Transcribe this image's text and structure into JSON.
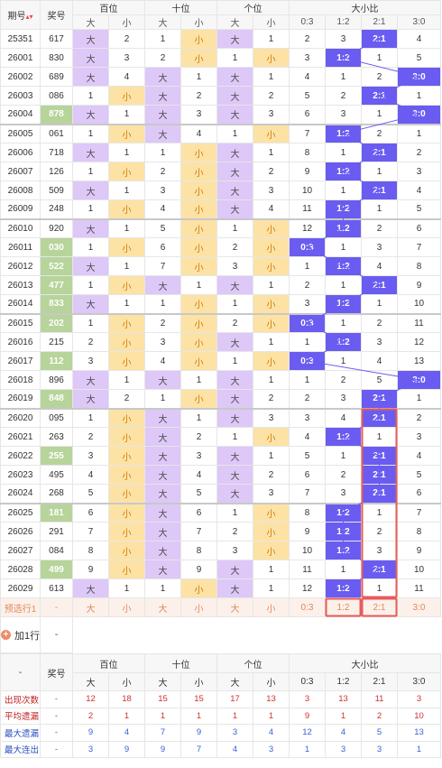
{
  "header": {
    "period_label": "期号",
    "prize_label": "奖号",
    "groups": [
      "百位",
      "十位",
      "个位",
      "大小比"
    ],
    "sub": [
      "大",
      "小",
      "大",
      "小",
      "大",
      "小",
      "0:3",
      "1:2",
      "2:1",
      "3:0"
    ]
  },
  "rows": [
    {
      "p": "25351",
      "n": "617",
      "j": false,
      "c": [
        {
          "t": "大",
          "k": "da"
        },
        {
          "t": "2"
        },
        {
          "t": "1"
        },
        {
          "t": "小",
          "k": "xiao"
        },
        {
          "t": "大",
          "k": "da"
        },
        {
          "t": "1"
        },
        {
          "t": "2"
        },
        {
          "t": "3"
        },
        {
          "t": "2:1",
          "k": "ratio"
        },
        {
          "t": "4"
        }
      ]
    },
    {
      "p": "26001",
      "n": "830",
      "j": false,
      "c": [
        {
          "t": "大",
          "k": "da"
        },
        {
          "t": "3"
        },
        {
          "t": "2"
        },
        {
          "t": "小",
          "k": "xiao"
        },
        {
          "t": "1"
        },
        {
          "t": "小",
          "k": "xiao"
        },
        {
          "t": "3"
        },
        {
          "t": "1:2",
          "k": "ratio"
        },
        {
          "t": "1"
        },
        {
          "t": "5"
        }
      ]
    },
    {
      "p": "26002",
      "n": "689",
      "j": false,
      "c": [
        {
          "t": "大",
          "k": "da"
        },
        {
          "t": "4"
        },
        {
          "t": "大",
          "k": "da"
        },
        {
          "t": "1"
        },
        {
          "t": "大",
          "k": "da"
        },
        {
          "t": "1"
        },
        {
          "t": "4"
        },
        {
          "t": "1"
        },
        {
          "t": "2"
        },
        {
          "t": "3:0",
          "k": "ratio"
        }
      ]
    },
    {
      "p": "26003",
      "n": "086",
      "j": false,
      "c": [
        {
          "t": "1"
        },
        {
          "t": "小",
          "k": "xiao"
        },
        {
          "t": "大",
          "k": "da"
        },
        {
          "t": "2"
        },
        {
          "t": "大",
          "k": "da"
        },
        {
          "t": "2"
        },
        {
          "t": "5"
        },
        {
          "t": "2"
        },
        {
          "t": "2:1",
          "k": "ratio"
        },
        {
          "t": "1"
        }
      ]
    },
    {
      "p": "26004",
      "n": "878",
      "j": true,
      "c": [
        {
          "t": "大",
          "k": "da"
        },
        {
          "t": "1"
        },
        {
          "t": "大",
          "k": "da"
        },
        {
          "t": "3"
        },
        {
          "t": "大",
          "k": "da"
        },
        {
          "t": "3"
        },
        {
          "t": "6"
        },
        {
          "t": "3"
        },
        {
          "t": "1"
        },
        {
          "t": "3:0",
          "k": "ratio"
        }
      ]
    },
    {
      "p": "26005",
      "n": "061",
      "j": false,
      "g": true,
      "c": [
        {
          "t": "1"
        },
        {
          "t": "小",
          "k": "xiao"
        },
        {
          "t": "大",
          "k": "da"
        },
        {
          "t": "4"
        },
        {
          "t": "1"
        },
        {
          "t": "小",
          "k": "xiao"
        },
        {
          "t": "7"
        },
        {
          "t": "1:2",
          "k": "ratio"
        },
        {
          "t": "2"
        },
        {
          "t": "1"
        }
      ]
    },
    {
      "p": "26006",
      "n": "718",
      "j": false,
      "c": [
        {
          "t": "大",
          "k": "da"
        },
        {
          "t": "1"
        },
        {
          "t": "1"
        },
        {
          "t": "小",
          "k": "xiao"
        },
        {
          "t": "大",
          "k": "da"
        },
        {
          "t": "1"
        },
        {
          "t": "8"
        },
        {
          "t": "1"
        },
        {
          "t": "2:1",
          "k": "ratio"
        },
        {
          "t": "2"
        }
      ]
    },
    {
      "p": "26007",
      "n": "126",
      "j": false,
      "c": [
        {
          "t": "1"
        },
        {
          "t": "小",
          "k": "xiao"
        },
        {
          "t": "2"
        },
        {
          "t": "小",
          "k": "xiao"
        },
        {
          "t": "大",
          "k": "da"
        },
        {
          "t": "2"
        },
        {
          "t": "9"
        },
        {
          "t": "1:2",
          "k": "ratio"
        },
        {
          "t": "1"
        },
        {
          "t": "3"
        }
      ]
    },
    {
      "p": "26008",
      "n": "509",
      "j": false,
      "c": [
        {
          "t": "大",
          "k": "da"
        },
        {
          "t": "1"
        },
        {
          "t": "3"
        },
        {
          "t": "小",
          "k": "xiao"
        },
        {
          "t": "大",
          "k": "da"
        },
        {
          "t": "3"
        },
        {
          "t": "10"
        },
        {
          "t": "1"
        },
        {
          "t": "2:1",
          "k": "ratio"
        },
        {
          "t": "4"
        }
      ]
    },
    {
      "p": "26009",
      "n": "248",
      "j": false,
      "c": [
        {
          "t": "1"
        },
        {
          "t": "小",
          "k": "xiao"
        },
        {
          "t": "4"
        },
        {
          "t": "小",
          "k": "xiao"
        },
        {
          "t": "大",
          "k": "da"
        },
        {
          "t": "4"
        },
        {
          "t": "11"
        },
        {
          "t": "1:2",
          "k": "ratio"
        },
        {
          "t": "1"
        },
        {
          "t": "5"
        }
      ]
    },
    {
      "p": "26010",
      "n": "920",
      "j": false,
      "g": true,
      "c": [
        {
          "t": "大",
          "k": "da"
        },
        {
          "t": "1"
        },
        {
          "t": "5"
        },
        {
          "t": "小",
          "k": "xiao"
        },
        {
          "t": "1"
        },
        {
          "t": "小",
          "k": "xiao"
        },
        {
          "t": "12"
        },
        {
          "t": "1:2",
          "k": "ratio"
        },
        {
          "t": "2"
        },
        {
          "t": "6"
        }
      ]
    },
    {
      "p": "26011",
      "n": "030",
      "j": true,
      "c": [
        {
          "t": "1"
        },
        {
          "t": "小",
          "k": "xiao"
        },
        {
          "t": "6"
        },
        {
          "t": "小",
          "k": "xiao"
        },
        {
          "t": "2"
        },
        {
          "t": "小",
          "k": "xiao"
        },
        {
          "t": "0:3",
          "k": "ratio"
        },
        {
          "t": "1"
        },
        {
          "t": "3"
        },
        {
          "t": "7"
        }
      ]
    },
    {
      "p": "26012",
      "n": "522",
      "j": true,
      "c": [
        {
          "t": "大",
          "k": "da"
        },
        {
          "t": "1"
        },
        {
          "t": "7"
        },
        {
          "t": "小",
          "k": "xiao"
        },
        {
          "t": "3"
        },
        {
          "t": "小",
          "k": "xiao"
        },
        {
          "t": "1"
        },
        {
          "t": "1:2",
          "k": "ratio"
        },
        {
          "t": "4"
        },
        {
          "t": "8"
        }
      ]
    },
    {
      "p": "26013",
      "n": "477",
      "j": true,
      "c": [
        {
          "t": "1"
        },
        {
          "t": "小",
          "k": "xiao"
        },
        {
          "t": "大",
          "k": "da"
        },
        {
          "t": "1"
        },
        {
          "t": "大",
          "k": "da"
        },
        {
          "t": "1"
        },
        {
          "t": "2"
        },
        {
          "t": "1"
        },
        {
          "t": "2:1",
          "k": "ratio"
        },
        {
          "t": "9"
        }
      ]
    },
    {
      "p": "26014",
      "n": "833",
      "j": true,
      "c": [
        {
          "t": "大",
          "k": "da"
        },
        {
          "t": "1"
        },
        {
          "t": "1"
        },
        {
          "t": "小",
          "k": "xiao"
        },
        {
          "t": "1"
        },
        {
          "t": "小",
          "k": "xiao"
        },
        {
          "t": "3"
        },
        {
          "t": "1:2",
          "k": "ratio"
        },
        {
          "t": "1"
        },
        {
          "t": "10"
        }
      ]
    },
    {
      "p": "26015",
      "n": "202",
      "j": true,
      "g": true,
      "c": [
        {
          "t": "1"
        },
        {
          "t": "小",
          "k": "xiao"
        },
        {
          "t": "2"
        },
        {
          "t": "小",
          "k": "xiao"
        },
        {
          "t": "2"
        },
        {
          "t": "小",
          "k": "xiao"
        },
        {
          "t": "0:3",
          "k": "ratio"
        },
        {
          "t": "1"
        },
        {
          "t": "2"
        },
        {
          "t": "11"
        }
      ]
    },
    {
      "p": "26016",
      "n": "215",
      "j": false,
      "c": [
        {
          "t": "2"
        },
        {
          "t": "小",
          "k": "xiao"
        },
        {
          "t": "3"
        },
        {
          "t": "小",
          "k": "xiao"
        },
        {
          "t": "大",
          "k": "da"
        },
        {
          "t": "1"
        },
        {
          "t": "1"
        },
        {
          "t": "1:2",
          "k": "ratio"
        },
        {
          "t": "3"
        },
        {
          "t": "12"
        }
      ]
    },
    {
      "p": "26017",
      "n": "112",
      "j": true,
      "c": [
        {
          "t": "3"
        },
        {
          "t": "小",
          "k": "xiao"
        },
        {
          "t": "4"
        },
        {
          "t": "小",
          "k": "xiao"
        },
        {
          "t": "1"
        },
        {
          "t": "小",
          "k": "xiao"
        },
        {
          "t": "0:3",
          "k": "ratio"
        },
        {
          "t": "1"
        },
        {
          "t": "4"
        },
        {
          "t": "13"
        }
      ]
    },
    {
      "p": "26018",
      "n": "896",
      "j": false,
      "c": [
        {
          "t": "大",
          "k": "da"
        },
        {
          "t": "1"
        },
        {
          "t": "大",
          "k": "da"
        },
        {
          "t": "1"
        },
        {
          "t": "大",
          "k": "da"
        },
        {
          "t": "1"
        },
        {
          "t": "1"
        },
        {
          "t": "2"
        },
        {
          "t": "5"
        },
        {
          "t": "3:0",
          "k": "ratio"
        }
      ]
    },
    {
      "p": "26019",
      "n": "848",
      "j": true,
      "c": [
        {
          "t": "大",
          "k": "da"
        },
        {
          "t": "2"
        },
        {
          "t": "1"
        },
        {
          "t": "小",
          "k": "xiao"
        },
        {
          "t": "大",
          "k": "da"
        },
        {
          "t": "2"
        },
        {
          "t": "2"
        },
        {
          "t": "3"
        },
        {
          "t": "2:1",
          "k": "ratio"
        },
        {
          "t": "1"
        }
      ]
    },
    {
      "p": "26020",
      "n": "095",
      "j": false,
      "g": true,
      "c": [
        {
          "t": "1"
        },
        {
          "t": "小",
          "k": "xiao"
        },
        {
          "t": "大",
          "k": "da"
        },
        {
          "t": "1"
        },
        {
          "t": "大",
          "k": "da"
        },
        {
          "t": "3"
        },
        {
          "t": "3"
        },
        {
          "t": "4"
        },
        {
          "t": "2:1",
          "k": "ratio"
        },
        {
          "t": "2"
        }
      ]
    },
    {
      "p": "26021",
      "n": "263",
      "j": false,
      "c": [
        {
          "t": "2"
        },
        {
          "t": "小",
          "k": "xiao"
        },
        {
          "t": "大",
          "k": "da"
        },
        {
          "t": "2"
        },
        {
          "t": "1"
        },
        {
          "t": "小",
          "k": "xiao"
        },
        {
          "t": "4"
        },
        {
          "t": "1:2",
          "k": "ratio"
        },
        {
          "t": "1"
        },
        {
          "t": "3"
        }
      ]
    },
    {
      "p": "26022",
      "n": "255",
      "j": true,
      "c": [
        {
          "t": "3"
        },
        {
          "t": "小",
          "k": "xiao"
        },
        {
          "t": "大",
          "k": "da"
        },
        {
          "t": "3"
        },
        {
          "t": "大",
          "k": "da"
        },
        {
          "t": "1"
        },
        {
          "t": "5"
        },
        {
          "t": "1"
        },
        {
          "t": "2:1",
          "k": "ratio"
        },
        {
          "t": "4"
        }
      ]
    },
    {
      "p": "26023",
      "n": "495",
      "j": false,
      "c": [
        {
          "t": "4"
        },
        {
          "t": "小",
          "k": "xiao"
        },
        {
          "t": "大",
          "k": "da"
        },
        {
          "t": "4"
        },
        {
          "t": "大",
          "k": "da"
        },
        {
          "t": "2"
        },
        {
          "t": "6"
        },
        {
          "t": "2"
        },
        {
          "t": "2:1",
          "k": "ratio"
        },
        {
          "t": "5"
        }
      ]
    },
    {
      "p": "26024",
      "n": "268",
      "j": false,
      "c": [
        {
          "t": "5"
        },
        {
          "t": "小",
          "k": "xiao"
        },
        {
          "t": "大",
          "k": "da"
        },
        {
          "t": "5"
        },
        {
          "t": "大",
          "k": "da"
        },
        {
          "t": "3"
        },
        {
          "t": "7"
        },
        {
          "t": "3"
        },
        {
          "t": "2:1",
          "k": "ratio"
        },
        {
          "t": "6"
        }
      ]
    },
    {
      "p": "26025",
      "n": "181",
      "j": true,
      "g": true,
      "c": [
        {
          "t": "6"
        },
        {
          "t": "小",
          "k": "xiao"
        },
        {
          "t": "大",
          "k": "da"
        },
        {
          "t": "6"
        },
        {
          "t": "1"
        },
        {
          "t": "小",
          "k": "xiao"
        },
        {
          "t": "8"
        },
        {
          "t": "1:2",
          "k": "ratio"
        },
        {
          "t": "1"
        },
        {
          "t": "7"
        }
      ]
    },
    {
      "p": "26026",
      "n": "291",
      "j": false,
      "c": [
        {
          "t": "7"
        },
        {
          "t": "小",
          "k": "xiao"
        },
        {
          "t": "大",
          "k": "da"
        },
        {
          "t": "7"
        },
        {
          "t": "2"
        },
        {
          "t": "小",
          "k": "xiao"
        },
        {
          "t": "9"
        },
        {
          "t": "1:2",
          "k": "ratio"
        },
        {
          "t": "2"
        },
        {
          "t": "8"
        }
      ]
    },
    {
      "p": "26027",
      "n": "084",
      "j": false,
      "c": [
        {
          "t": "8"
        },
        {
          "t": "小",
          "k": "xiao"
        },
        {
          "t": "大",
          "k": "da"
        },
        {
          "t": "8"
        },
        {
          "t": "3"
        },
        {
          "t": "小",
          "k": "xiao"
        },
        {
          "t": "10"
        },
        {
          "t": "1:2",
          "k": "ratio"
        },
        {
          "t": "3"
        },
        {
          "t": "9"
        }
      ]
    },
    {
      "p": "26028",
      "n": "499",
      "j": true,
      "c": [
        {
          "t": "9"
        },
        {
          "t": "小",
          "k": "xiao"
        },
        {
          "t": "大",
          "k": "da"
        },
        {
          "t": "9"
        },
        {
          "t": "大",
          "k": "da"
        },
        {
          "t": "1"
        },
        {
          "t": "11"
        },
        {
          "t": "1"
        },
        {
          "t": "2:1",
          "k": "ratio"
        },
        {
          "t": "10"
        }
      ]
    },
    {
      "p": "26029",
      "n": "613",
      "j": false,
      "c": [
        {
          "t": "大",
          "k": "da"
        },
        {
          "t": "1"
        },
        {
          "t": "1"
        },
        {
          "t": "小",
          "k": "xiao"
        },
        {
          "t": "大",
          "k": "da"
        },
        {
          "t": "1"
        },
        {
          "t": "12"
        },
        {
          "t": "1:2",
          "k": "ratio"
        },
        {
          "t": "1"
        },
        {
          "t": "11"
        }
      ]
    }
  ],
  "forecast": {
    "label": "预选行1",
    "prize": "-",
    "cells": [
      "大",
      "小",
      "大",
      "小",
      "大",
      "小",
      "0:3",
      "1:2",
      "2:1",
      "3:0"
    ]
  },
  "add_row": {
    "label": "加1行",
    "prize": "-"
  },
  "stats": {
    "dash": "-",
    "prize_label": "奖号",
    "groups": [
      "百位",
      "十位",
      "个位",
      "大小比"
    ],
    "sub": [
      "大",
      "小",
      "大",
      "小",
      "大",
      "小",
      "0:3",
      "1:2",
      "2:1",
      "3:0"
    ],
    "rows": [
      {
        "label": "出现次数",
        "prize": "-",
        "style": "red",
        "v": [
          "12",
          "18",
          "15",
          "15",
          "17",
          "13",
          "3",
          "13",
          "11",
          "3"
        ]
      },
      {
        "label": "平均遗漏",
        "prize": "-",
        "style": "red",
        "v": [
          "2",
          "1",
          "1",
          "1",
          "1",
          "1",
          "9",
          "1",
          "2",
          "10"
        ]
      },
      {
        "label": "最大遗漏",
        "prize": "-",
        "style": "blue",
        "v": [
          "9",
          "4",
          "7",
          "9",
          "3",
          "4",
          "12",
          "4",
          "5",
          "13"
        ]
      },
      {
        "label": "最大连出",
        "prize": "-",
        "style": "blue",
        "v": [
          "3",
          "9",
          "9",
          "7",
          "4",
          "3",
          "1",
          "3",
          "3",
          "1"
        ]
      }
    ]
  },
  "colors": {
    "da": "#ddc8f7",
    "xiao": "#fde2a6",
    "xiao_text": "#d07a00",
    "prize_highlight": "#b7d49b",
    "ratio": "#6a5cf0",
    "trend_line": "#6a5cf0",
    "selection_box": "#e85a5a",
    "forecast_bg": "#fbf1ea",
    "forecast_text": "#e3875a"
  },
  "icons": {
    "sort": "sort-icon",
    "add": "plus-circle-icon"
  }
}
